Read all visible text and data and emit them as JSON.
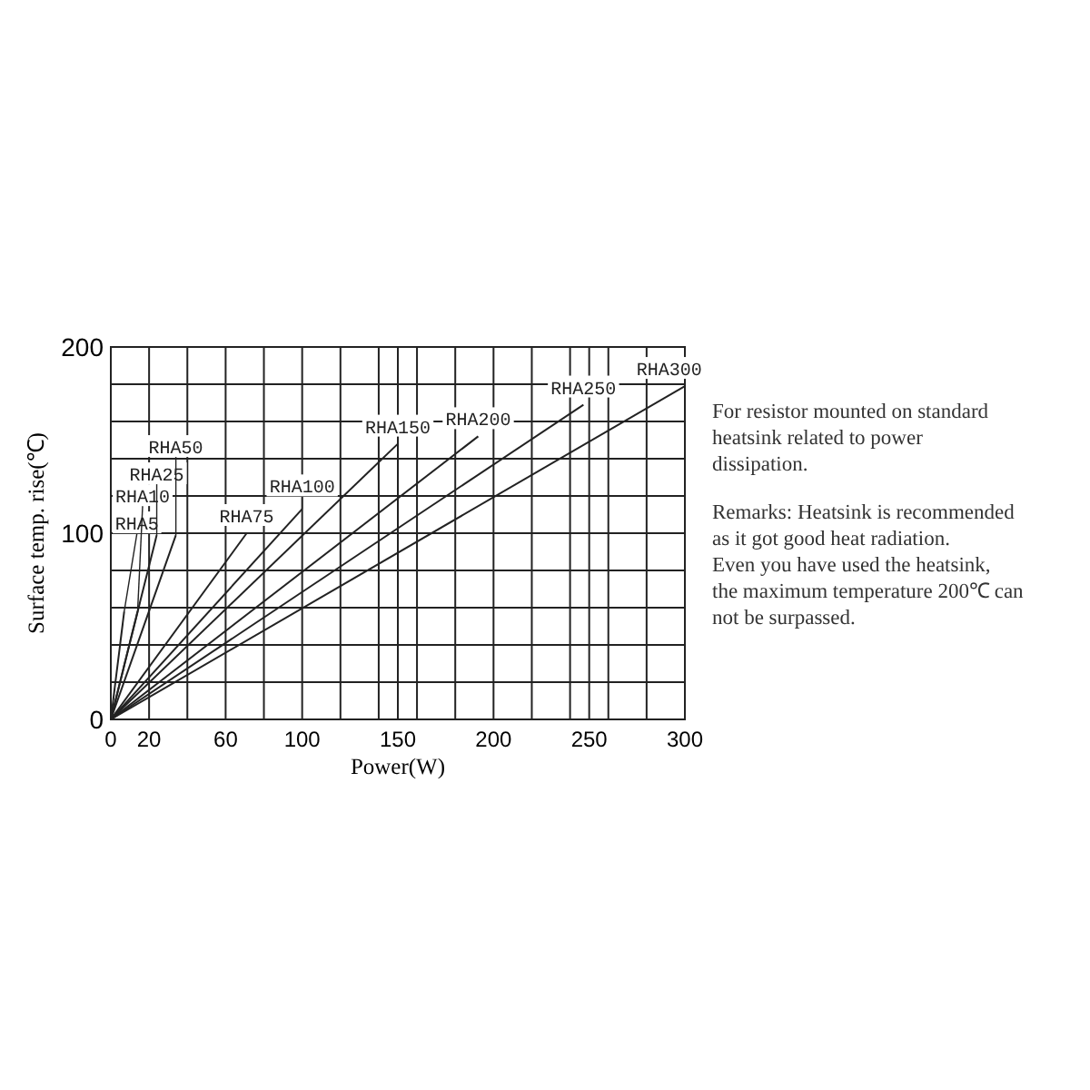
{
  "chart_data": {
    "type": "line",
    "xlabel": "Power(W)",
    "ylabel": "Surface temp. rise(℃)",
    "xlim": [
      0,
      300
    ],
    "ylim": [
      0,
      200
    ],
    "xticks": [
      0,
      20,
      {
        "value": 40,
        "label": null
      },
      60,
      {
        "value": 80,
        "label": null
      },
      100,
      {
        "value": 120,
        "label": null
      },
      {
        "value": 140,
        "label": null
      },
      150,
      {
        "value": 160,
        "label": null
      },
      {
        "value": 180,
        "label": null
      },
      200,
      {
        "value": 220,
        "label": null
      },
      {
        "value": 240,
        "label": null
      },
      250,
      {
        "value": 260,
        "label": null
      },
      {
        "value": 280,
        "label": null
      },
      300
    ],
    "yticks": [
      0,
      {
        "value": 20,
        "label": null
      },
      {
        "value": 40,
        "label": null
      },
      {
        "value": 60,
        "label": null
      },
      {
        "value": 80,
        "label": null
      },
      100,
      {
        "value": 120,
        "label": null
      },
      {
        "value": 140,
        "label": null
      },
      {
        "value": 160,
        "label": null
      },
      {
        "value": 180,
        "label": null
      },
      200
    ],
    "grid": true,
    "marker": "none",
    "line_style": "solid",
    "legend": false,
    "series": [
      {
        "name": "RHA5",
        "color": "#222222",
        "x": [
          0,
          7
        ],
        "values": [
          0,
          58
        ]
      },
      {
        "name": "RHA10",
        "color": "#222222",
        "x": [
          0,
          14
        ],
        "values": [
          0,
          58
        ]
      },
      {
        "name": "RHA25",
        "color": "#222222",
        "x": [
          0,
          24
        ],
        "values": [
          0,
          99
        ]
      },
      {
        "name": "RHA50",
        "color": "#222222",
        "x": [
          0,
          34
        ],
        "values": [
          0,
          99
        ]
      },
      {
        "name": "RHA75",
        "color": "#222222",
        "x": [
          0,
          71
        ],
        "values": [
          0,
          100
        ]
      },
      {
        "name": "RHA100",
        "color": "#222222",
        "x": [
          0,
          100
        ],
        "values": [
          0,
          113
        ]
      },
      {
        "name": "RHA150",
        "color": "#222222",
        "x": [
          0,
          150
        ],
        "values": [
          0,
          148
        ]
      },
      {
        "name": "RHA200",
        "color": "#222222",
        "x": [
          0,
          192
        ],
        "values": [
          0,
          152
        ]
      },
      {
        "name": "RHA250",
        "color": "#222222",
        "x": [
          0,
          247
        ],
        "values": [
          0,
          169
        ]
      },
      {
        "name": "RHA300",
        "color": "#222222",
        "x": [
          0,
          300
        ],
        "values": [
          0,
          179
        ]
      }
    ],
    "annotations": [
      "For resistor mounted on standard heatsink related to power dissipation.",
      "Remarks: Heatsink is recommended as it got good heat radiation. Even you have used the heatsink, the maximum temperature 200℃ can not be surpassed."
    ]
  }
}
